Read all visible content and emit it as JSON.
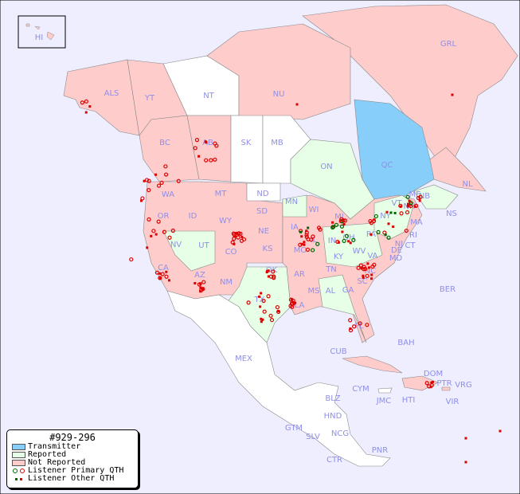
{
  "map": {
    "colors": {
      "ocean": "#eeeeff",
      "unlisted": "#ffffff",
      "transmitter": "#87cefa",
      "reported": "#e6ffe6",
      "not_reported": "#ffcccc",
      "label": "#8f8fe8",
      "listener_primary_reported": "#006600",
      "listener_primary": "#dd0000",
      "listener_other": "#dd0000"
    },
    "labels": [
      "HI",
      "ALS",
      "YT",
      "NT",
      "NU",
      "GRL",
      "BC",
      "AB",
      "SK",
      "MB",
      "ON",
      "QC",
      "NL",
      "NB",
      "NS",
      "WA",
      "OR",
      "ID",
      "MT",
      "WY",
      "ND",
      "SD",
      "NE",
      "MN",
      "WI",
      "IA",
      "IL",
      "MI",
      "IN",
      "OH",
      "PA",
      "NY",
      "MA",
      "CT",
      "NJ",
      "DE",
      "MD",
      "VA",
      "WV",
      "KY",
      "TN",
      "NC",
      "SC",
      "GA",
      "AL",
      "MS",
      "LA",
      "AR",
      "MO",
      "KS",
      "OK",
      "TX",
      "NM",
      "AZ",
      "UT",
      "NV",
      "CA",
      "CO",
      "FL",
      "BER",
      "BAH",
      "CUB",
      "MEX",
      "DOM",
      "PTR",
      "VRG",
      "CYM",
      "JMC",
      "HTI",
      "VIR",
      "BLZ",
      "HND",
      "GTM",
      "SLV",
      "NCG",
      "CTR",
      "PNR",
      "VT",
      "NH",
      "RI",
      "ME"
    ]
  },
  "legend": {
    "title": "#929-296",
    "items": [
      {
        "label": "Transmitter",
        "color": "#87cefa"
      },
      {
        "label": "Reported",
        "color": "#e6ffe6"
      },
      {
        "label": "Not Reported",
        "color": "#ffcccc"
      },
      {
        "label": "Listener Primary QTH"
      },
      {
        "label": "Listener Other QTH"
      }
    ]
  }
}
